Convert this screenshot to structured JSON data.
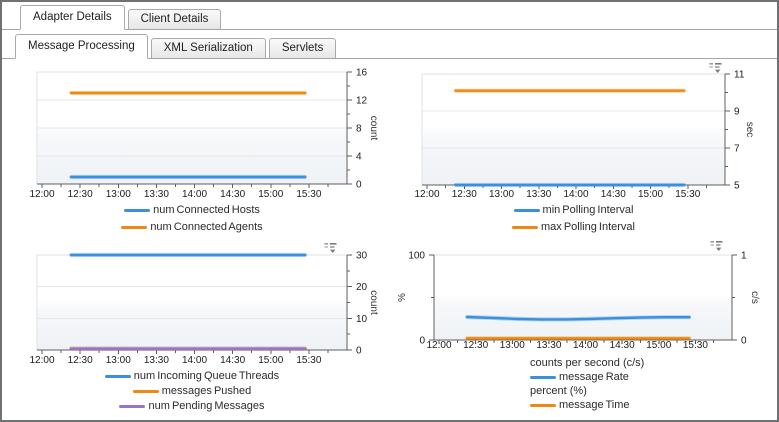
{
  "tab_bars": [
    {
      "name": "detail-tabs",
      "tabs": [
        {
          "label": "Adapter Details",
          "active": true
        },
        {
          "label": "Client Details",
          "active": false
        }
      ]
    },
    {
      "name": "section-tabs",
      "tabs": [
        {
          "label": "Message Processing",
          "active": true
        },
        {
          "label": "XML Serialization",
          "active": false
        },
        {
          "label": "Servlets",
          "active": false
        }
      ]
    }
  ],
  "colors": {
    "series_blue": "#3a8fdf",
    "series_orange": "#ee8912",
    "series_purple": "#9575c9",
    "axis_line": "#5f5f5f",
    "gridline": "#e7e7e7"
  },
  "time_labels": [
    "12:00",
    "12:30",
    "13:00",
    "13:30",
    "14:00",
    "14:30",
    "15:00",
    "15:30"
  ],
  "chart_data": [
    {
      "type": "line",
      "name": "connections",
      "menu_icon": false,
      "x_axis": {
        "labels": [
          "12:00",
          "12:30",
          "13:00",
          "13:30",
          "14:00",
          "14:30",
          "15:00",
          "15:30"
        ],
        "minutes_per_label": 30,
        "total_minutes": 240
      },
      "y_right": {
        "title": "count",
        "min": 0,
        "max": 16,
        "major_ticks": [
          0,
          4,
          8,
          12,
          16
        ],
        "minor_step": 2
      },
      "series": [
        {
          "name": "num Connected Hosts",
          "color": "#3a8fdf",
          "axis": "right",
          "start_min": 23,
          "end_min": 207,
          "values": [
            1,
            1
          ]
        },
        {
          "name": "num Connected Agents",
          "color": "#ee8912",
          "axis": "right",
          "start_min": 23,
          "end_min": 207,
          "values": [
            13,
            13
          ]
        }
      ],
      "legend": [
        {
          "label": "num Connected Hosts",
          "color": "#3a8fdf"
        },
        {
          "label": "num Connected Agents",
          "color": "#ee8912"
        }
      ]
    },
    {
      "type": "line",
      "name": "polling-interval",
      "menu_icon": true,
      "menu_icon_name": "chart-menu-icon",
      "x_axis": {
        "labels": [
          "12:00",
          "12:30",
          "13:00",
          "13:30",
          "14:00",
          "14:30",
          "15:00",
          "15:30"
        ],
        "minutes_per_label": 30,
        "total_minutes": 240
      },
      "y_right": {
        "title": "sec",
        "min": 5,
        "max": 11,
        "major_ticks": [
          5,
          7,
          9,
          11
        ],
        "minor_step": 1
      },
      "series": [
        {
          "name": "min Polling Interval",
          "color": "#3a8fdf",
          "axis": "right",
          "start_min": 23,
          "end_min": 207,
          "values": [
            5,
            5
          ]
        },
        {
          "name": "max Polling Interval",
          "color": "#ee8912",
          "axis": "right",
          "start_min": 23,
          "end_min": 207,
          "values": [
            10.1,
            10.1
          ]
        }
      ],
      "legend": [
        {
          "label": "min Polling Interval",
          "color": "#3a8fdf"
        },
        {
          "label": "max Polling Interval",
          "color": "#ee8912"
        }
      ]
    },
    {
      "type": "line",
      "name": "queue-messages",
      "menu_icon": true,
      "menu_icon_name": "chart-menu-icon",
      "x_axis": {
        "labels": [
          "12:00",
          "12:30",
          "13:00",
          "13:30",
          "14:00",
          "14:30",
          "15:00",
          "15:30"
        ],
        "minutes_per_label": 30,
        "total_minutes": 240
      },
      "y_right": {
        "title": "count",
        "min": 0,
        "max": 30,
        "major_ticks": [
          0,
          10,
          20,
          30
        ],
        "minor_step": 5
      },
      "series": [
        {
          "name": "num Incoming Queue Threads",
          "color": "#3a8fdf",
          "axis": "right",
          "start_min": 23,
          "end_min": 207,
          "values": [
            30,
            30
          ]
        },
        {
          "name": "messages Pushed",
          "color": "#ee8912",
          "axis": "right",
          "start_min": 23,
          "end_min": 207,
          "values": [
            0.4,
            0.4
          ]
        },
        {
          "name": "num Pending Messages",
          "color": "#9575c9",
          "axis": "right",
          "start_min": 23,
          "end_min": 207,
          "values": [
            0.4,
            0.4
          ]
        }
      ],
      "legend": [
        {
          "label": "num Incoming Queue Threads",
          "color": "#3a8fdf"
        },
        {
          "label": "messages Pushed",
          "color": "#ee8912"
        },
        {
          "label": "num Pending Messages",
          "color": "#9575c9"
        }
      ]
    },
    {
      "type": "line",
      "name": "message-rate",
      "menu_icon": true,
      "menu_icon_name": "chart-menu-icon",
      "x_axis": {
        "labels": [
          "12:00",
          "12:30",
          "13:00",
          "13:30",
          "14:00",
          "14:30",
          "15:00",
          "15:30"
        ],
        "minutes_per_label": 30,
        "total_minutes": 240
      },
      "y_left": {
        "title": "%",
        "min": 0,
        "max": 100,
        "major_ticks": [
          0,
          100
        ],
        "minor_step": 50
      },
      "y_right": {
        "title": "c/s",
        "min": 0,
        "max": 1,
        "major_ticks": [
          0,
          1
        ],
        "minor_step": 0.5
      },
      "series": [
        {
          "name": "message Rate",
          "color": "#3a8fdf",
          "axis": "right",
          "start_min": 23,
          "end_min": 205,
          "values": [
            0.27,
            0.26,
            0.248,
            0.242,
            0.242,
            0.248,
            0.256,
            0.263,
            0.268,
            0.268
          ]
        },
        {
          "name": "message Time",
          "color": "#ee8912",
          "axis": "left",
          "start_min": 23,
          "end_min": 205,
          "values": [
            2,
            2
          ]
        }
      ],
      "legend": [
        {
          "header": "counts per second (c/s)"
        },
        {
          "label": "message Rate",
          "color": "#3a8fdf"
        },
        {
          "header": "percent (%)"
        },
        {
          "label": "message Time",
          "color": "#ee8912"
        }
      ]
    }
  ]
}
